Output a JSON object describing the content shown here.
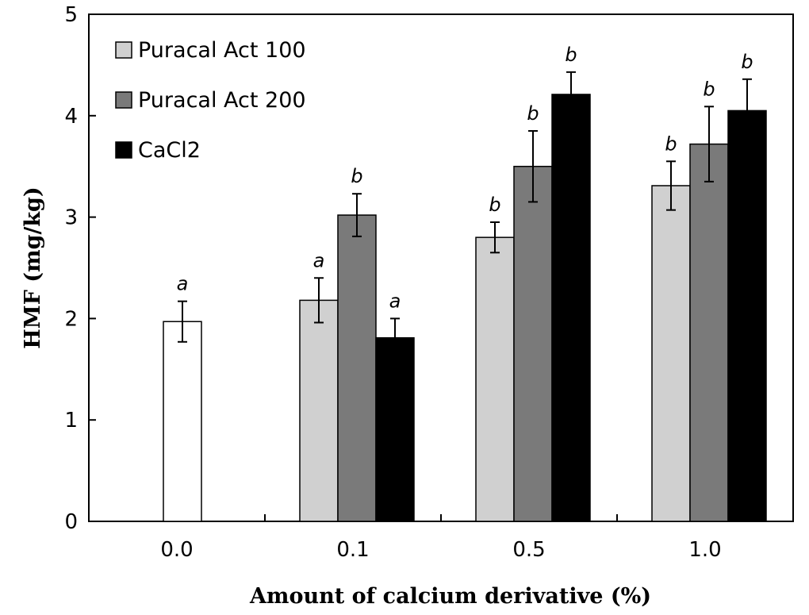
{
  "chart_data": {
    "type": "bar",
    "xlabel": "Amount of calcium derivative (%)",
    "ylabel": "HMF (mg/kg)",
    "ylim": [
      0,
      5
    ],
    "yticks": [
      "0",
      "1",
      "2",
      "3",
      "4",
      "5"
    ],
    "categories": [
      "0.0",
      "0.1",
      "0.5",
      "1.0"
    ],
    "control": {
      "value": 1.97,
      "error": 0.2,
      "label": "a",
      "color": "#ffffff"
    },
    "series": [
      {
        "name": "Puracal Act 100",
        "color": "#d0d0d0",
        "values": [
          null,
          2.18,
          2.8,
          3.31
        ],
        "errors": [
          null,
          0.22,
          0.15,
          0.24
        ],
        "labels": [
          "",
          "a",
          "b",
          "b"
        ]
      },
      {
        "name": "Puracal Act 200",
        "color": "#7a7a7a",
        "values": [
          null,
          3.02,
          3.5,
          3.72
        ],
        "errors": [
          null,
          0.21,
          0.35,
          0.37
        ],
        "labels": [
          "",
          "b",
          "b",
          "b"
        ]
      },
      {
        "name": "CaCl2",
        "color": "#000000",
        "values": [
          null,
          1.81,
          4.21,
          4.05
        ],
        "errors": [
          null,
          0.19,
          0.22,
          0.31
        ],
        "labels": [
          "",
          "a",
          "b",
          "b"
        ]
      }
    ],
    "legend_position": "top-left",
    "grid": false
  }
}
